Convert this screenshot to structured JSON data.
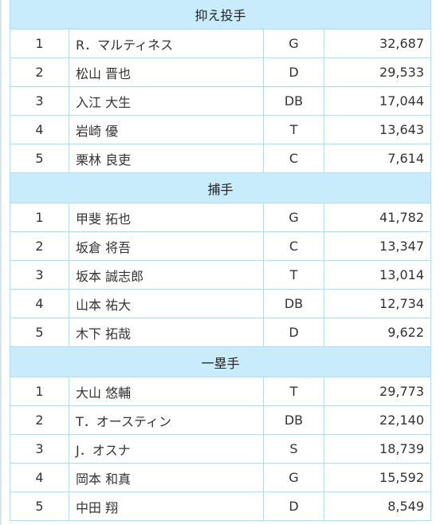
{
  "sections": [
    {
      "title": "抑え投手",
      "rows": [
        {
          "rank": "1",
          "name": "R．マルティネス",
          "team": "G",
          "votes": "32,687"
        },
        {
          "rank": "2",
          "name": "松山 晋也",
          "team": "D",
          "votes": "29,533"
        },
        {
          "rank": "3",
          "name": "入江 大生",
          "team": "DB",
          "votes": "17,044"
        },
        {
          "rank": "4",
          "name": "岩崎 優",
          "team": "T",
          "votes": "13,643"
        },
        {
          "rank": "5",
          "name": "栗林 良吏",
          "team": "C",
          "votes": "7,614"
        }
      ]
    },
    {
      "title": "捕手",
      "rows": [
        {
          "rank": "1",
          "name": "甲斐 拓也",
          "team": "G",
          "votes": "41,782"
        },
        {
          "rank": "2",
          "name": "坂倉 将吾",
          "team": "C",
          "votes": "13,347"
        },
        {
          "rank": "3",
          "name": "坂本 誠志郎",
          "team": "T",
          "votes": "13,014"
        },
        {
          "rank": "4",
          "name": "山本 祐大",
          "team": "DB",
          "votes": "12,734"
        },
        {
          "rank": "5",
          "name": "木下 拓哉",
          "team": "D",
          "votes": "9,622"
        }
      ]
    },
    {
      "title": "一塁手",
      "rows": [
        {
          "rank": "1",
          "name": "大山 悠輔",
          "team": "T",
          "votes": "29,773"
        },
        {
          "rank": "2",
          "name": "T．オースティン",
          "team": "DB",
          "votes": "22,140"
        },
        {
          "rank": "3",
          "name": "J．オスナ",
          "team": "S",
          "votes": "18,739"
        },
        {
          "rank": "4",
          "name": "岡本 和真",
          "team": "G",
          "votes": "15,592"
        },
        {
          "rank": "5",
          "name": "中田 翔",
          "team": "D",
          "votes": "8,549"
        }
      ]
    }
  ]
}
